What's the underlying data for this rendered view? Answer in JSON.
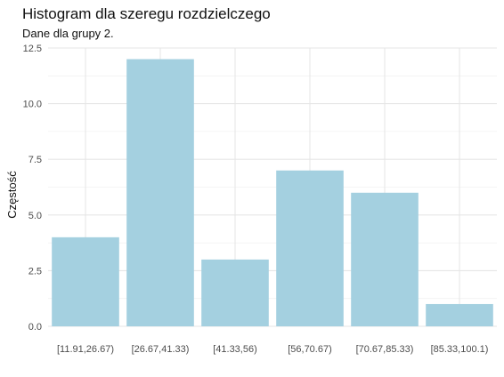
{
  "chart_data": {
    "type": "bar",
    "title": "Histogram dla szeregu rozdzielczego",
    "subtitle": "Dane dla grupy 2.",
    "xlabel": "",
    "ylabel": "Częstość",
    "categories": [
      "[11.91,26.67)",
      "[26.67,41.33)",
      "[41.33,56)",
      "[56,70.67)",
      "[70.67,85.33)",
      "[85.33,100.1)"
    ],
    "values": [
      4,
      12,
      3,
      7,
      6,
      1
    ],
    "ylim": [
      0,
      12.5
    ],
    "yticks": [
      0,
      2.5,
      5,
      7.5,
      10,
      12.5
    ],
    "ytick_labels": [
      "0.0",
      "2.5",
      "5.0",
      "7.5",
      "10.0",
      "12.5"
    ],
    "bar_color": "#A4D0E0",
    "grid": true
  }
}
